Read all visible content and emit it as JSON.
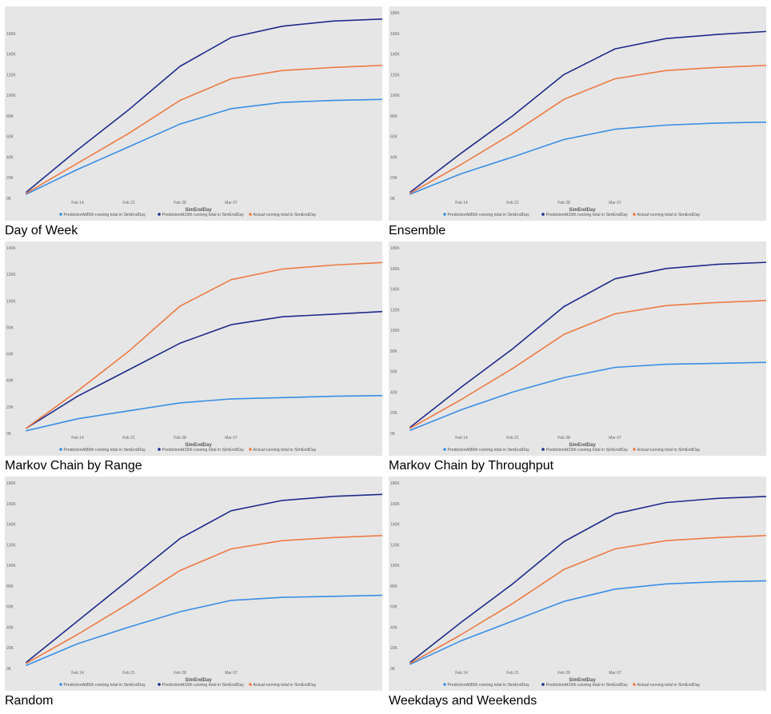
{
  "colors": {
    "p85": "#3a8ee6",
    "p15": "#1f2a8a",
    "actual": "#ee7a44",
    "plot_bg": "#e6e6e6"
  },
  "chart_data": [
    {
      "type": "line",
      "caption": "Day of Week",
      "xlabel": "SimEndDay",
      "x_ticks": [
        "Feb 14",
        "Feb 21",
        "Feb 28",
        "Mar 07"
      ],
      "y_ticks": [
        "0K",
        "20K",
        "40K",
        "60K",
        "80K",
        "100K",
        "120K",
        "140K",
        "160K"
      ],
      "ylim": [
        0,
        180000
      ],
      "x": [
        "Feb 07",
        "Feb 14",
        "Feb 21",
        "Feb 28",
        "Mar 07",
        "Mar 14",
        "Mar 21",
        "Mar 28"
      ],
      "series": [
        {
          "name": "PredictionAt85th running total in SimEndDay",
          "color_key": "p85",
          "values": [
            4000,
            28000,
            50000,
            72000,
            87000,
            93000,
            95000,
            96000
          ]
        },
        {
          "name": "PredictionAt15th running total in SimEndDay",
          "color_key": "p15",
          "values": [
            6000,
            47000,
            86000,
            128000,
            156000,
            167000,
            172000,
            174000
          ]
        },
        {
          "name": "Actual running total in SimEndDay",
          "color_key": "actual",
          "values": [
            5000,
            34000,
            63000,
            95000,
            116000,
            124000,
            127000,
            129000
          ]
        }
      ]
    },
    {
      "type": "line",
      "caption": "Ensemble",
      "xlabel": "SimEndDay",
      "x_ticks": [
        "Feb 14",
        "Feb 21",
        "Feb 28",
        "Mar 07"
      ],
      "y_ticks": [
        "0K",
        "20K",
        "40K",
        "60K",
        "80K",
        "100K",
        "120K",
        "140K",
        "160K",
        "180K"
      ],
      "ylim": [
        0,
        180000
      ],
      "x": [
        "Feb 07",
        "Feb 14",
        "Feb 21",
        "Feb 28",
        "Mar 07",
        "Mar 14",
        "Mar 21",
        "Mar 28"
      ],
      "series": [
        {
          "name": "PredictionAt85th running total in SimEndDay",
          "color_key": "p85",
          "values": [
            4000,
            24000,
            40000,
            57000,
            67000,
            71000,
            73000,
            74000
          ]
        },
        {
          "name": "PredictionAt15th running total in SimEndDay",
          "color_key": "p15",
          "values": [
            6000,
            44000,
            80000,
            120000,
            145000,
            155000,
            159000,
            162000
          ]
        },
        {
          "name": "Actual running total in SimEndDay",
          "color_key": "actual",
          "values": [
            5000,
            33000,
            63000,
            96000,
            116000,
            124000,
            127000,
            129000
          ]
        }
      ]
    },
    {
      "type": "line",
      "caption": "Markov Chain by Range",
      "xlabel": "SimEndDay",
      "x_ticks": [
        "Feb 14",
        "Feb 21",
        "Feb 28",
        "Mar 07"
      ],
      "y_ticks": [
        "0K",
        "20K",
        "40K",
        "60K",
        "80K",
        "100K",
        "120K",
        "140K"
      ],
      "ylim": [
        0,
        140000
      ],
      "x": [
        "Feb 07",
        "Feb 14",
        "Feb 21",
        "Feb 28",
        "Mar 07",
        "Mar 14",
        "Mar 21",
        "Mar 28"
      ],
      "series": [
        {
          "name": "PredictionAt85th running total in SimEndDay",
          "color_key": "p85",
          "values": [
            2000,
            11000,
            17000,
            23000,
            26000,
            27000,
            28000,
            28500
          ]
        },
        {
          "name": "PredictionAt15th running total in SimEndDay",
          "color_key": "p15",
          "values": [
            4000,
            28000,
            48000,
            68000,
            82000,
            88000,
            90000,
            92000
          ]
        },
        {
          "name": "Actual running total in SimEndDay",
          "color_key": "actual",
          "values": [
            4000,
            32000,
            62000,
            96000,
            116000,
            124000,
            127000,
            129000
          ]
        }
      ]
    },
    {
      "type": "line",
      "caption": "Markov Chain by Throughput",
      "xlabel": "SimEndDay",
      "x_ticks": [
        "Feb 14",
        "Feb 21",
        "Feb 28",
        "Mar 07"
      ],
      "y_ticks": [
        "0K",
        "20K",
        "40K",
        "60K",
        "80K",
        "100K",
        "120K",
        "140K",
        "160K",
        "180K"
      ],
      "ylim": [
        0,
        180000
      ],
      "x": [
        "Feb 07",
        "Feb 14",
        "Feb 21",
        "Feb 28",
        "Mar 07",
        "Mar 14",
        "Mar 21",
        "Mar 28"
      ],
      "series": [
        {
          "name": "PredictionAt85th running total in SimEndDay",
          "color_key": "p85",
          "values": [
            3000,
            23000,
            40000,
            54000,
            64000,
            67000,
            68000,
            69000
          ]
        },
        {
          "name": "PredictionAt15th running total in SimEndDay",
          "color_key": "p15",
          "values": [
            6000,
            45000,
            82000,
            123000,
            150000,
            160000,
            164000,
            166000
          ]
        },
        {
          "name": "Actual running total in SimEndDay",
          "color_key": "actual",
          "values": [
            5000,
            33000,
            63000,
            96000,
            116000,
            124000,
            127000,
            129000
          ]
        }
      ]
    },
    {
      "type": "line",
      "caption": "Random",
      "xlabel": "SimEndDay",
      "x_ticks": [
        "Feb 14",
        "Feb 21",
        "Feb 28",
        "Mar 07"
      ],
      "y_ticks": [
        "0K",
        "20K",
        "40K",
        "60K",
        "80K",
        "100K",
        "120K",
        "140K",
        "160K",
        "180K"
      ],
      "ylim": [
        0,
        180000
      ],
      "x": [
        "Feb 07",
        "Feb 14",
        "Feb 21",
        "Feb 28",
        "Mar 07",
        "Mar 14",
        "Mar 21",
        "Mar 28"
      ],
      "series": [
        {
          "name": "PredictionAt85th running total in SimEndDay",
          "color_key": "p85",
          "values": [
            3000,
            24000,
            40000,
            55000,
            66000,
            69000,
            70000,
            71000
          ]
        },
        {
          "name": "PredictionAt15th running total in SimEndDay",
          "color_key": "p15",
          "values": [
            6000,
            46000,
            86000,
            126000,
            153000,
            163000,
            167000,
            169000
          ]
        },
        {
          "name": "Actual running total in SimEndDay",
          "color_key": "actual",
          "values": [
            5000,
            33000,
            63000,
            95000,
            116000,
            124000,
            127000,
            129000
          ]
        }
      ]
    },
    {
      "type": "line",
      "caption": "Weekdays and Weekends",
      "xlabel": "SimEndDay",
      "x_ticks": [
        "Feb 14",
        "Feb 21",
        "Feb 28",
        "Mar 07"
      ],
      "y_ticks": [
        "0K",
        "20K",
        "40K",
        "60K",
        "80K",
        "100K",
        "120K",
        "140K",
        "160K",
        "180K"
      ],
      "ylim": [
        0,
        180000
      ],
      "x": [
        "Feb 07",
        "Feb 14",
        "Feb 21",
        "Feb 28",
        "Mar 07",
        "Mar 14",
        "Mar 21",
        "Mar 28"
      ],
      "series": [
        {
          "name": "PredictionAt85th running total in SimEndDay",
          "color_key": "p85",
          "values": [
            4000,
            27000,
            46000,
            65000,
            77000,
            82000,
            84000,
            85000
          ]
        },
        {
          "name": "PredictionAt15th running total in SimEndDay",
          "color_key": "p15",
          "values": [
            6000,
            45000,
            82000,
            123000,
            150000,
            161000,
            165000,
            167000
          ]
        },
        {
          "name": "Actual running total in SimEndDay",
          "color_key": "actual",
          "values": [
            5000,
            33000,
            63000,
            96000,
            116000,
            124000,
            127000,
            129000
          ]
        }
      ]
    }
  ]
}
